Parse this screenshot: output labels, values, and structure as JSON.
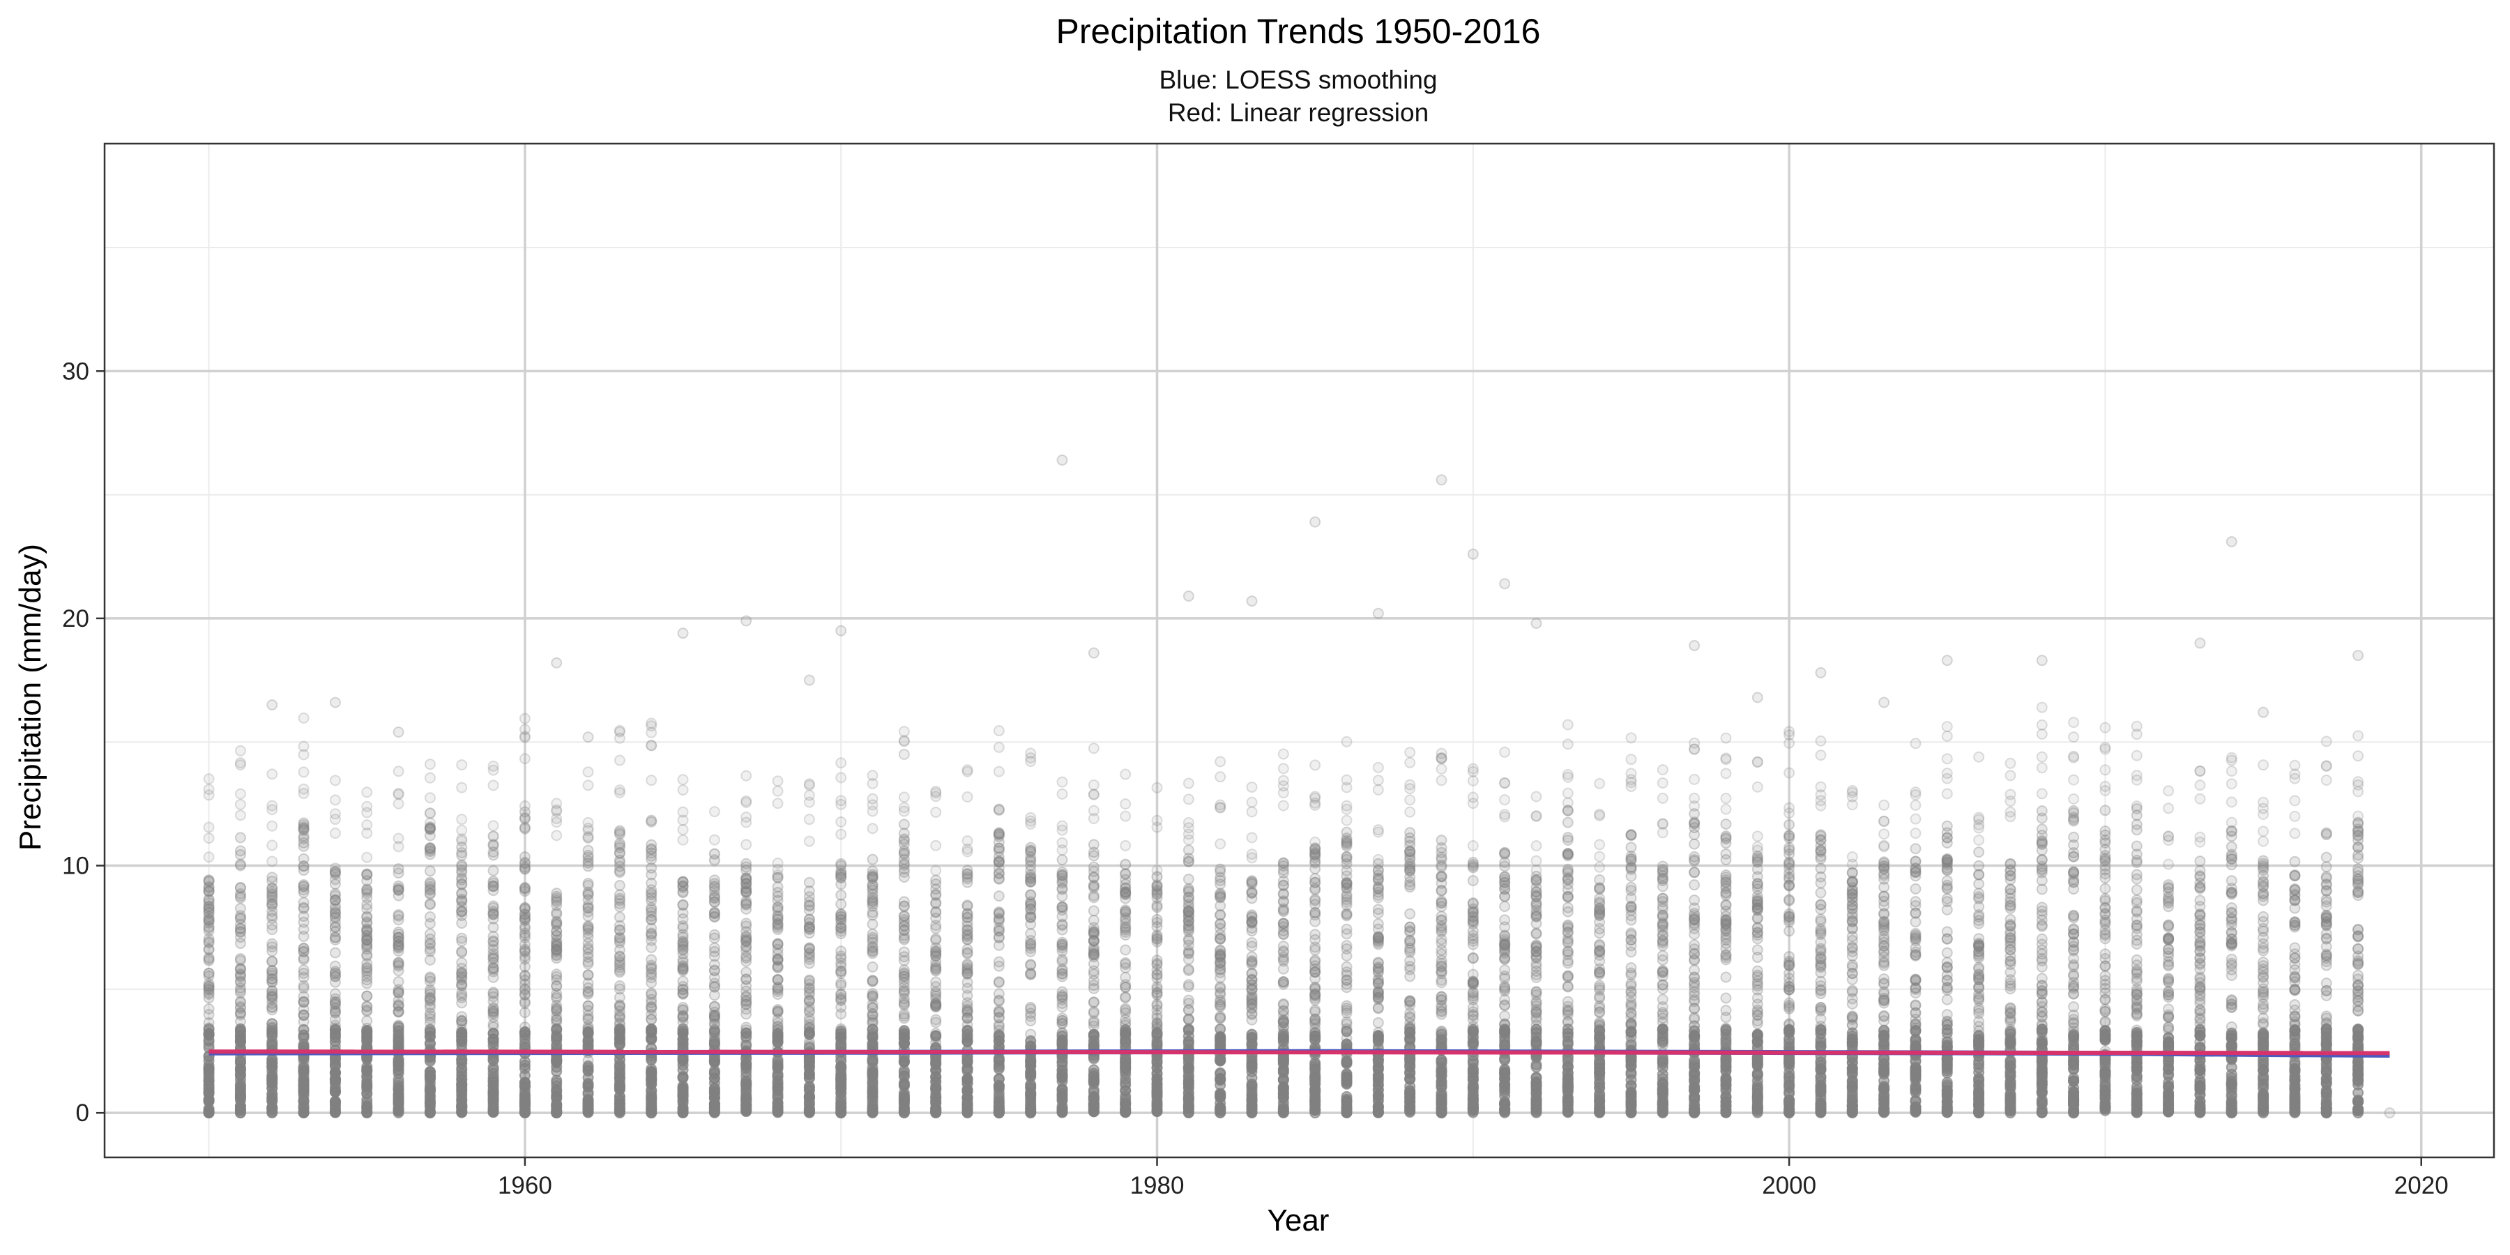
{
  "chart_data": {
    "type": "scatter",
    "title": "Precipitation Trends 1950-2016",
    "subtitle_lines": [
      "Blue: LOESS smoothing",
      "Red: Linear regression"
    ],
    "xlabel": "Year",
    "ylabel": "Precipitation (mm/day)",
    "xlim": [
      1946.7,
      2022.3
    ],
    "ylim": [
      -1.8,
      39.2
    ],
    "x_ticks": [
      1960,
      1980,
      2000,
      2020
    ],
    "x_tick_labels": [
      "1960",
      "1980",
      "2000",
      "2020"
    ],
    "y_ticks": [
      0,
      10,
      20,
      30
    ],
    "y_tick_labels": [
      "0",
      "10",
      "20",
      "30"
    ],
    "grid": true,
    "points_x_range": [
      1950,
      2019
    ],
    "point_color": "#808080",
    "points_per_year_max_approx": 11.0,
    "outliers": [
      {
        "x": 1977,
        "y": 26.4
      },
      {
        "x": 1989,
        "y": 25.6
      },
      {
        "x": 1985,
        "y": 23.9
      },
      {
        "x": 2014,
        "y": 23.1
      },
      {
        "x": 1990,
        "y": 22.6
      },
      {
        "x": 1991,
        "y": 21.4
      },
      {
        "x": 1981,
        "y": 20.9
      },
      {
        "x": 1983,
        "y": 20.7
      },
      {
        "x": 1987,
        "y": 20.2
      },
      {
        "x": 1967,
        "y": 19.9
      },
      {
        "x": 1992,
        "y": 19.8
      },
      {
        "x": 1970,
        "y": 19.5
      },
      {
        "x": 1965,
        "y": 19.4
      },
      {
        "x": 2013,
        "y": 19.0
      },
      {
        "x": 1997,
        "y": 18.9
      },
      {
        "x": 1978,
        "y": 18.6
      },
      {
        "x": 2018,
        "y": 18.5
      },
      {
        "x": 2005,
        "y": 18.3
      },
      {
        "x": 2008,
        "y": 18.3
      },
      {
        "x": 1961,
        "y": 18.2
      },
      {
        "x": 2001,
        "y": 17.8
      },
      {
        "x": 1969,
        "y": 17.5
      },
      {
        "x": 1952,
        "y": 16.5
      },
      {
        "x": 1954,
        "y": 16.6
      },
      {
        "x": 2003,
        "y": 16.6
      },
      {
        "x": 1999,
        "y": 16.8
      },
      {
        "x": 2015,
        "y": 16.2
      },
      {
        "x": 1956,
        "y": 15.4
      },
      {
        "x": 1962,
        "y": 15.2
      },
      {
        "x": 1972,
        "y": 14.5
      }
    ],
    "series": [
      {
        "name": "LOESS smoothing",
        "color": "#4a5bbf",
        "x": [
          1950,
          1960,
          1970,
          1980,
          1985,
          1990,
          2000,
          2005,
          2010,
          2015,
          2019
        ],
        "y": [
          2.42,
          2.44,
          2.45,
          2.47,
          2.48,
          2.47,
          2.44,
          2.43,
          2.41,
          2.36,
          2.33
        ]
      },
      {
        "name": "Linear regression",
        "color": "#d6336c",
        "x": [
          1950,
          2019
        ],
        "y": [
          2.48,
          2.42
        ]
      }
    ]
  }
}
